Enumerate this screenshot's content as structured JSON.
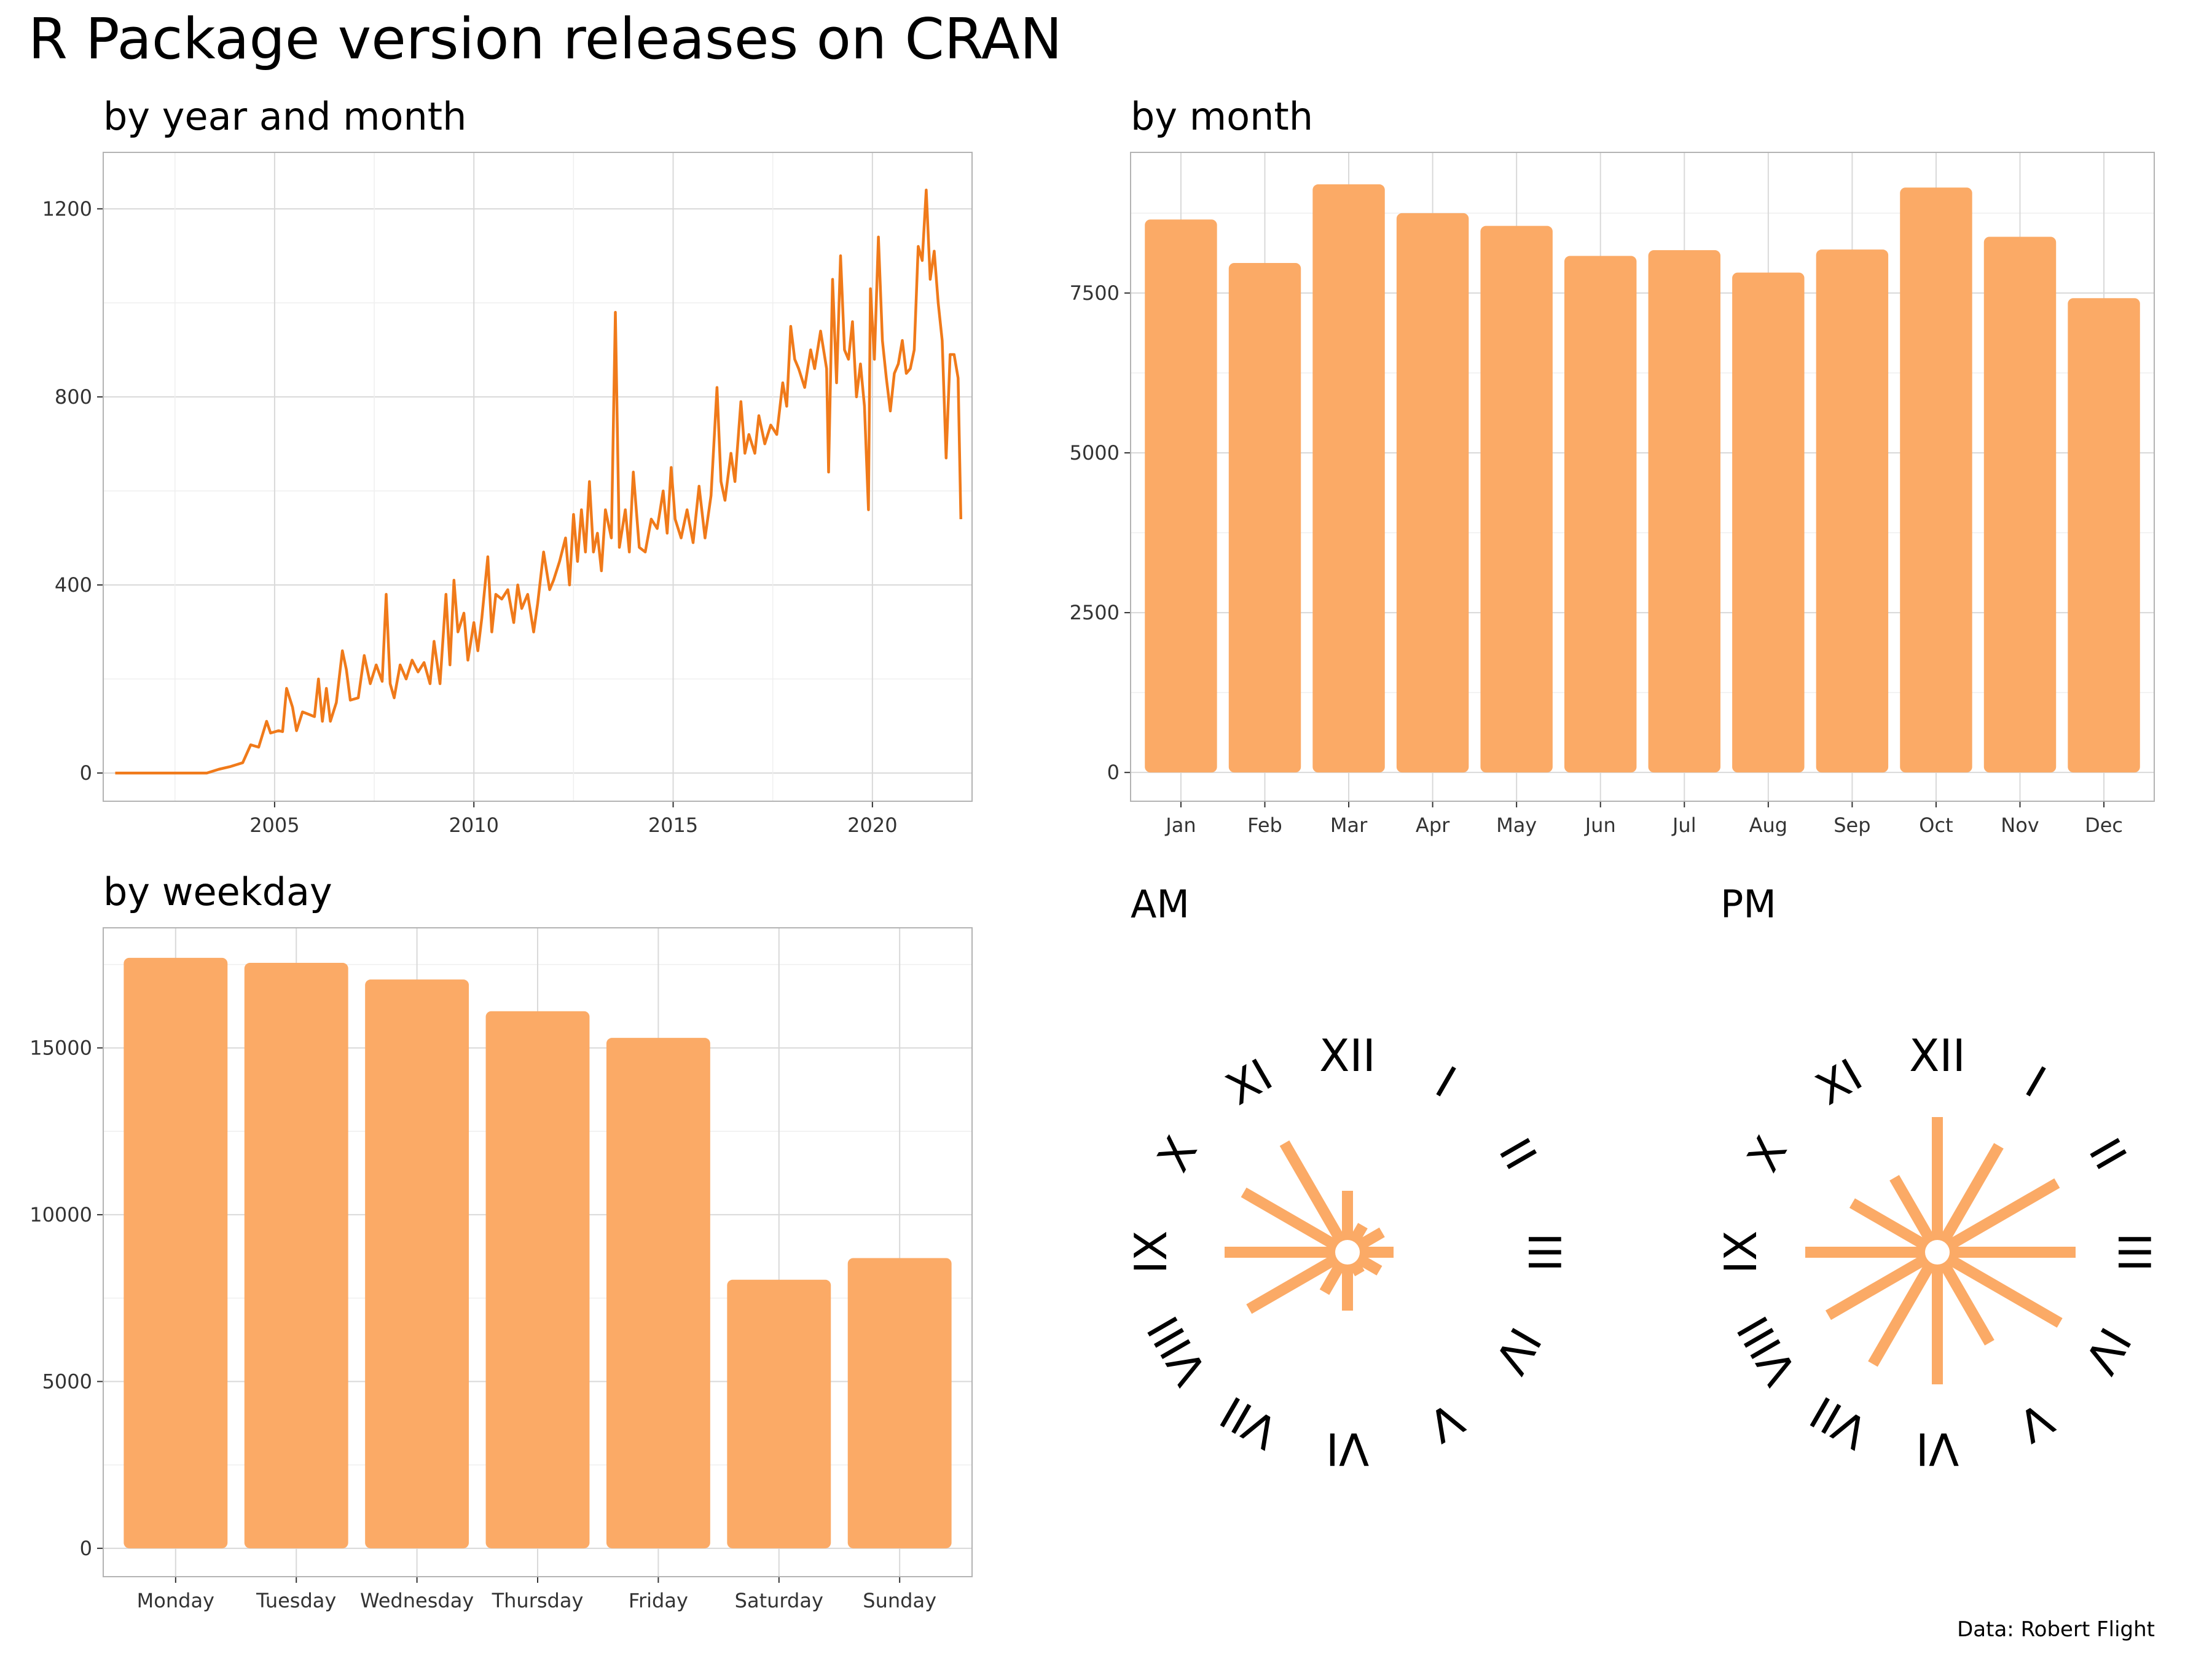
{
  "title": "R Package version releases on CRAN",
  "caption": "Data: Robert Flight",
  "colors": {
    "line": "#F07A1A",
    "bar": "#FBAA66",
    "grid_major": "#D9D9D9",
    "grid_minor": "#EFEFEF",
    "panel_border": "#B3B3B3",
    "text": "#000000"
  },
  "chart_data": [
    {
      "id": "by_year_month",
      "type": "line",
      "title": "by year and month",
      "x_ticks": [
        2005,
        2010,
        2015,
        2020
      ],
      "y_ticks": [
        0,
        400,
        800,
        1200
      ],
      "xlim": [
        2000.7,
        2022.5
      ],
      "ylim": [
        -60,
        1320
      ],
      "grid": true,
      "points": [
        [
          2001.0,
          0
        ],
        [
          2001.5,
          0
        ],
        [
          2002.0,
          0
        ],
        [
          2002.5,
          0
        ],
        [
          2003.0,
          0
        ],
        [
          2003.3,
          0
        ],
        [
          2003.6,
          8
        ],
        [
          2003.9,
          14
        ],
        [
          2004.2,
          22
        ],
        [
          2004.4,
          60
        ],
        [
          2004.6,
          55
        ],
        [
          2004.8,
          110
        ],
        [
          2004.9,
          85
        ],
        [
          2005.1,
          90
        ],
        [
          2005.2,
          88
        ],
        [
          2005.3,
          180
        ],
        [
          2005.45,
          140
        ],
        [
          2005.55,
          90
        ],
        [
          2005.7,
          130
        ],
        [
          2005.85,
          125
        ],
        [
          2006.0,
          120
        ],
        [
          2006.1,
          200
        ],
        [
          2006.2,
          110
        ],
        [
          2006.3,
          180
        ],
        [
          2006.4,
          110
        ],
        [
          2006.55,
          150
        ],
        [
          2006.7,
          260
        ],
        [
          2006.8,
          220
        ],
        [
          2006.9,
          155
        ],
        [
          2007.1,
          160
        ],
        [
          2007.25,
          250
        ],
        [
          2007.4,
          190
        ],
        [
          2007.55,
          230
        ],
        [
          2007.7,
          195
        ],
        [
          2007.8,
          380
        ],
        [
          2007.9,
          190
        ],
        [
          2008.0,
          160
        ],
        [
          2008.15,
          230
        ],
        [
          2008.3,
          200
        ],
        [
          2008.45,
          240
        ],
        [
          2008.6,
          215
        ],
        [
          2008.75,
          235
        ],
        [
          2008.9,
          190
        ],
        [
          2009.0,
          280
        ],
        [
          2009.15,
          190
        ],
        [
          2009.3,
          380
        ],
        [
          2009.4,
          230
        ],
        [
          2009.5,
          410
        ],
        [
          2009.6,
          300
        ],
        [
          2009.75,
          340
        ],
        [
          2009.85,
          240
        ],
        [
          2010.0,
          320
        ],
        [
          2010.1,
          260
        ],
        [
          2010.2,
          330
        ],
        [
          2010.35,
          460
        ],
        [
          2010.45,
          300
        ],
        [
          2010.55,
          380
        ],
        [
          2010.7,
          370
        ],
        [
          2010.85,
          390
        ],
        [
          2011.0,
          320
        ],
        [
          2011.1,
          400
        ],
        [
          2011.2,
          350
        ],
        [
          2011.35,
          380
        ],
        [
          2011.5,
          300
        ],
        [
          2011.6,
          360
        ],
        [
          2011.75,
          470
        ],
        [
          2011.9,
          390
        ],
        [
          2012.0,
          410
        ],
        [
          2012.15,
          450
        ],
        [
          2012.3,
          500
        ],
        [
          2012.4,
          400
        ],
        [
          2012.5,
          550
        ],
        [
          2012.6,
          450
        ],
        [
          2012.7,
          560
        ],
        [
          2012.8,
          470
        ],
        [
          2012.9,
          620
        ],
        [
          2013.0,
          470
        ],
        [
          2013.1,
          510
        ],
        [
          2013.2,
          430
        ],
        [
          2013.3,
          560
        ],
        [
          2013.45,
          500
        ],
        [
          2013.55,
          980
        ],
        [
          2013.65,
          480
        ],
        [
          2013.8,
          560
        ],
        [
          2013.9,
          470
        ],
        [
          2014.0,
          640
        ],
        [
          2014.15,
          480
        ],
        [
          2014.3,
          470
        ],
        [
          2014.45,
          540
        ],
        [
          2014.6,
          520
        ],
        [
          2014.75,
          600
        ],
        [
          2014.85,
          510
        ],
        [
          2014.95,
          650
        ],
        [
          2015.05,
          540
        ],
        [
          2015.2,
          500
        ],
        [
          2015.35,
          560
        ],
        [
          2015.5,
          490
        ],
        [
          2015.65,
          610
        ],
        [
          2015.8,
          500
        ],
        [
          2015.95,
          590
        ],
        [
          2016.1,
          820
        ],
        [
          2016.2,
          620
        ],
        [
          2016.3,
          580
        ],
        [
          2016.45,
          680
        ],
        [
          2016.55,
          620
        ],
        [
          2016.7,
          790
        ],
        [
          2016.8,
          680
        ],
        [
          2016.9,
          720
        ],
        [
          2017.05,
          680
        ],
        [
          2017.15,
          760
        ],
        [
          2017.3,
          700
        ],
        [
          2017.45,
          740
        ],
        [
          2017.6,
          720
        ],
        [
          2017.75,
          830
        ],
        [
          2017.85,
          780
        ],
        [
          2017.95,
          950
        ],
        [
          2018.05,
          880
        ],
        [
          2018.15,
          860
        ],
        [
          2018.3,
          820
        ],
        [
          2018.45,
          900
        ],
        [
          2018.55,
          860
        ],
        [
          2018.7,
          940
        ],
        [
          2018.85,
          860
        ],
        [
          2018.9,
          640
        ],
        [
          2019.0,
          1050
        ],
        [
          2019.1,
          830
        ],
        [
          2019.2,
          1100
        ],
        [
          2019.3,
          900
        ],
        [
          2019.4,
          880
        ],
        [
          2019.5,
          960
        ],
        [
          2019.6,
          800
        ],
        [
          2019.7,
          870
        ],
        [
          2019.8,
          780
        ],
        [
          2019.9,
          560
        ],
        [
          2019.95,
          1030
        ],
        [
          2020.05,
          880
        ],
        [
          2020.15,
          1140
        ],
        [
          2020.25,
          920
        ],
        [
          2020.35,
          840
        ],
        [
          2020.45,
          770
        ],
        [
          2020.55,
          850
        ],
        [
          2020.65,
          870
        ],
        [
          2020.75,
          920
        ],
        [
          2020.85,
          850
        ],
        [
          2020.95,
          860
        ],
        [
          2021.05,
          900
        ],
        [
          2021.15,
          1120
        ],
        [
          2021.25,
          1090
        ],
        [
          2021.35,
          1240
        ],
        [
          2021.45,
          1050
        ],
        [
          2021.55,
          1110
        ],
        [
          2021.65,
          1000
        ],
        [
          2021.75,
          920
        ],
        [
          2021.85,
          670
        ],
        [
          2021.95,
          890
        ],
        [
          2022.05,
          890
        ],
        [
          2022.15,
          840
        ],
        [
          2022.22,
          540
        ]
      ]
    },
    {
      "id": "by_month",
      "type": "bar",
      "title": "by month",
      "categories": [
        "Jan",
        "Feb",
        "Mar",
        "Apr",
        "May",
        "Jun",
        "Jul",
        "Aug",
        "Sep",
        "Oct",
        "Nov",
        "Dec"
      ],
      "values": [
        8650,
        7970,
        9200,
        8750,
        8550,
        8080,
        8170,
        7820,
        8180,
        9150,
        8380,
        7420
      ],
      "y_ticks": [
        0,
        2500,
        5000,
        7500
      ],
      "ylim": [
        -450,
        9700
      ],
      "grid": true
    },
    {
      "id": "by_weekday",
      "type": "bar",
      "title": "by weekday",
      "categories": [
        "Monday",
        "Tuesday",
        "Wednesday",
        "Thursday",
        "Friday",
        "Saturday",
        "Sunday"
      ],
      "values": [
        17700,
        17550,
        17050,
        16100,
        15300,
        8050,
        8700
      ],
      "y_ticks": [
        0,
        5000,
        10000,
        15000
      ],
      "ylim": [
        -850,
        18600
      ],
      "grid": true
    },
    {
      "id": "by_hour_am",
      "type": "bar",
      "title": "AM",
      "categories": [
        "XII",
        "I",
        "II",
        "III",
        "IV",
        "V",
        "VI",
        "VII",
        "VIII",
        "IX",
        "X",
        "XI"
      ],
      "values": [
        0.4,
        0.2,
        0.26,
        0.3,
        0.24,
        0.16,
        0.38,
        0.3,
        0.74,
        0.8,
        0.78,
        0.82
      ],
      "value_scale": "fraction of longest hour"
    },
    {
      "id": "by_hour_pm",
      "type": "bar",
      "title": "PM",
      "categories": [
        "XII",
        "I",
        "II",
        "III",
        "IV",
        "V",
        "VI",
        "VII",
        "VIII",
        "IX",
        "X",
        "XI"
      ],
      "values": [
        0.88,
        0.8,
        0.9,
        0.9,
        0.92,
        0.68,
        0.86,
        0.84,
        0.82,
        0.86,
        0.64,
        0.56
      ],
      "value_scale": "fraction of longest hour"
    }
  ]
}
